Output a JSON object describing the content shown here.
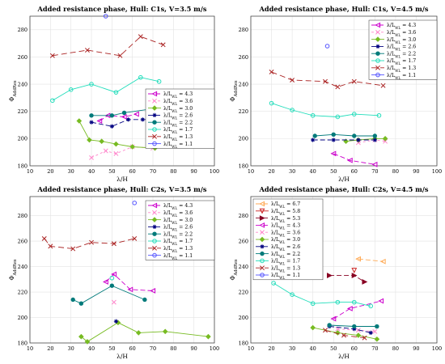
{
  "chart_data": [
    {
      "type": "line",
      "title": "Added resistance phase, Hull: C1s, V=3.5 m/s",
      "xlabel": "λ/H",
      "ylabel": "Φ_AddRes",
      "xlim": [
        10,
        100
      ],
      "ylim": [
        180,
        290
      ],
      "xticks": [
        10,
        20,
        30,
        40,
        50,
        60,
        70,
        80,
        90,
        100
      ],
      "yticks": [
        180,
        200,
        220,
        240,
        260,
        280
      ],
      "grid": true,
      "legend_position": "bottom-right",
      "series": [
        {
          "name": "λ/L_WL = 4.3",
          "color": "#cc00cc",
          "marker": "triangle-left",
          "dash": "6,3",
          "points": [
            [
              44,
              213
            ],
            [
              48,
              217
            ],
            [
              56,
              216
            ],
            [
              62,
              218
            ]
          ]
        },
        {
          "name": "λ/L_WL = 3.6",
          "color": "#ff88cc",
          "marker": "x",
          "dash": "3,3",
          "points": [
            [
              40,
              186
            ],
            [
              47,
              191
            ],
            [
              52,
              189
            ],
            [
              60,
              194
            ],
            [
              70,
              193
            ]
          ]
        },
        {
          "name": "λ/L_WL = 3.0",
          "color": "#77bb22",
          "marker": "diamond",
          "dash": "",
          "points": [
            [
              34,
              213
            ],
            [
              39,
              199
            ],
            [
              45,
              198
            ],
            [
              52,
              196
            ],
            [
              60,
              194
            ],
            [
              71,
              193
            ]
          ]
        },
        {
          "name": "λ/L_WL = 2.6",
          "color": "#000080",
          "marker": "star",
          "dash": "6,3",
          "points": [
            [
              40,
              212
            ],
            [
              50,
              209
            ],
            [
              58,
              214
            ],
            [
              65,
              214
            ],
            [
              74,
              214
            ]
          ]
        },
        {
          "name": "λ/L_WL = 2.2",
          "color": "#007a7a",
          "marker": "circle-filled",
          "dash": "",
          "points": [
            [
              40,
              217
            ],
            [
              50,
              217
            ],
            [
              56,
              219
            ],
            [
              70,
              222
            ]
          ]
        },
        {
          "name": "λ/L_WL = 1.7",
          "color": "#22ddbb",
          "marker": "circle",
          "dash": "",
          "points": [
            [
              21,
              228
            ],
            [
              30,
              236
            ],
            [
              40,
              240
            ],
            [
              52,
              234
            ],
            [
              64,
              245
            ],
            [
              73,
              242
            ]
          ]
        },
        {
          "name": "λ/L_WL = 1.3",
          "color": "#aa2222",
          "marker": "x",
          "dash": "7,4",
          "points": [
            [
              21,
              261
            ],
            [
              38,
              265
            ],
            [
              54,
              261
            ],
            [
              64,
              275
            ],
            [
              75,
              269
            ]
          ]
        },
        {
          "name": "λ/L_WL = 1.1",
          "color": "#5555ff",
          "marker": "circle",
          "dash": "",
          "points": [
            [
              47,
              290
            ]
          ]
        }
      ]
    },
    {
      "type": "line",
      "title": "Added resistance phase, Hull: C1s, V=4.5 m/s",
      "xlabel": "λ/H",
      "ylabel": "Φ_AddRes",
      "xlim": [
        10,
        100
      ],
      "ylim": [
        180,
        290
      ],
      "xticks": [
        10,
        20,
        30,
        40,
        50,
        60,
        70,
        80,
        90,
        100
      ],
      "yticks": [
        180,
        200,
        220,
        240,
        260,
        280
      ],
      "grid": true,
      "legend_position": "top-right",
      "series": [
        {
          "name": "λ/L_WL = 4.3",
          "color": "#cc00cc",
          "marker": "triangle-left",
          "dash": "6,3",
          "points": [
            [
              50,
              189
            ],
            [
              58,
              184
            ],
            [
              70,
              181
            ]
          ]
        },
        {
          "name": "λ/L_WL = 3.6",
          "color": "#ff88cc",
          "marker": "x",
          "dash": "3,3",
          "points": [
            [
              62,
              197
            ],
            [
              70,
              199
            ],
            [
              75,
              198
            ]
          ]
        },
        {
          "name": "λ/L_WL = 3.0",
          "color": "#77bb22",
          "marker": "diamond",
          "dash": "",
          "points": [
            [
              56,
              198
            ],
            [
              62,
              199
            ],
            [
              70,
              200
            ],
            [
              75,
              200
            ]
          ]
        },
        {
          "name": "λ/L_WL = 2.6",
          "color": "#000080",
          "marker": "star",
          "dash": "6,3",
          "points": [
            [
              40,
              199
            ],
            [
              50,
              199
            ],
            [
              62,
              199
            ],
            [
              70,
              199
            ]
          ]
        },
        {
          "name": "λ/L_WL = 2.2",
          "color": "#007a7a",
          "marker": "circle-filled",
          "dash": "",
          "points": [
            [
              41,
              202
            ],
            [
              50,
              203
            ],
            [
              60,
              202
            ],
            [
              70,
              202
            ]
          ]
        },
        {
          "name": "λ/L_WL = 1.7",
          "color": "#22ddbb",
          "marker": "circle",
          "dash": "",
          "points": [
            [
              20,
              226
            ],
            [
              30,
              221
            ],
            [
              40,
              217
            ],
            [
              52,
              216
            ],
            [
              60,
              218
            ],
            [
              72,
              217
            ]
          ]
        },
        {
          "name": "λ/L_WL = 1.3",
          "color": "#aa2222",
          "marker": "x",
          "dash": "7,4",
          "points": [
            [
              20,
              249
            ],
            [
              30,
              243
            ],
            [
              46,
              242
            ],
            [
              52,
              238
            ],
            [
              60,
              242
            ],
            [
              74,
              239
            ]
          ]
        },
        {
          "name": "λ/L_WL = 1.1",
          "color": "#5555ff",
          "marker": "circle",
          "dash": "",
          "points": [
            [
              47,
              268
            ]
          ]
        }
      ]
    },
    {
      "type": "line",
      "title": "Added resistance phase, Hull: C2s, V=3.5 m/s",
      "xlabel": "λ/H",
      "ylabel": "Φ_AddRes",
      "xlim": [
        10,
        100
      ],
      "ylim": [
        180,
        295
      ],
      "xticks": [
        10,
        20,
        30,
        40,
        50,
        60,
        70,
        80,
        90,
        100
      ],
      "yticks": [
        180,
        200,
        220,
        240,
        260,
        280
      ],
      "grid": true,
      "legend_position": "top-right",
      "series": [
        {
          "name": "λ/L_WL = 4.3",
          "color": "#cc00cc",
          "marker": "triangle-left",
          "dash": "6,3",
          "points": [
            [
              47,
              228
            ],
            [
              51,
              234
            ],
            [
              59,
              222
            ],
            [
              70,
              221
            ]
          ]
        },
        {
          "name": "λ/L_WL = 3.6",
          "color": "#ff88cc",
          "marker": "x",
          "dash": "3,3",
          "points": [
            [
              51,
              212
            ]
          ]
        },
        {
          "name": "λ/L_WL = 3.0",
          "color": "#77bb22",
          "marker": "diamond",
          "dash": "",
          "points": [
            [
              35,
              185
            ],
            [
              38,
              181
            ],
            [
              53,
              196
            ],
            [
              63,
              188
            ],
            [
              76,
              189
            ],
            [
              97,
              185
            ]
          ]
        },
        {
          "name": "λ/L_WL = 2.6",
          "color": "#000080",
          "marker": "star",
          "dash": "6,3",
          "points": [
            [
              52,
              197
            ]
          ]
        },
        {
          "name": "λ/L_WL = 2.2",
          "color": "#007a7a",
          "marker": "circle-filled",
          "dash": "",
          "points": [
            [
              31,
              214
            ],
            [
              35,
              211
            ],
            [
              50,
              225
            ],
            [
              66,
              214
            ]
          ]
        },
        {
          "name": "λ/L_WL = 1.7",
          "color": "#22ddbb",
          "marker": "circle",
          "dash": "",
          "points": [
            [
              50,
              231
            ]
          ]
        },
        {
          "name": "λ/L_WL = 1.3",
          "color": "#aa2222",
          "marker": "x",
          "dash": "7,4",
          "points": [
            [
              17,
              262
            ],
            [
              20,
              256
            ],
            [
              31,
              254
            ],
            [
              40,
              259
            ],
            [
              51,
              258
            ],
            [
              61,
              262
            ]
          ]
        },
        {
          "name": "λ/L_WL = 1.1",
          "color": "#5555ff",
          "marker": "circle",
          "dash": "",
          "points": [
            [
              61,
              290
            ]
          ]
        }
      ]
    },
    {
      "type": "line",
      "title": "Added resistance phase, Hull: C2s, V=4.5 m/s",
      "xlabel": "λ/H",
      "ylabel": "Φ_AddRes",
      "xlim": [
        10,
        100
      ],
      "ylim": [
        180,
        295
      ],
      "xticks": [
        10,
        20,
        30,
        40,
        50,
        60,
        70,
        80,
        90,
        100
      ],
      "yticks": [
        180,
        200,
        220,
        240,
        260,
        280
      ],
      "grid": true,
      "legend_position": "top-left",
      "series": [
        {
          "name": "λ/L_WL = 6.7",
          "color": "#ffaa55",
          "marker": "triangle-left",
          "dash": "6,3",
          "points": [
            [
              62,
              246
            ],
            [
              74,
              244
            ]
          ]
        },
        {
          "name": "λ/L_WL = 5.8",
          "color": "#cc2222",
          "marker": "triangle-down",
          "dash": "",
          "points": [
            [
              60,
              237
            ]
          ]
        },
        {
          "name": "λ/L_WL = 5.3",
          "color": "#880022",
          "marker": "triangle-right",
          "dash": "6,3",
          "points": [
            [
              48,
              233
            ],
            [
              60,
              233
            ],
            [
              65,
              228
            ]
          ]
        },
        {
          "name": "λ/L_WL = 4.3",
          "color": "#cc00cc",
          "marker": "triangle-left",
          "dash": "6,3",
          "points": [
            [
              50,
              199
            ],
            [
              58,
              207
            ],
            [
              73,
              213
            ]
          ]
        },
        {
          "name": "λ/L_WL = 3.6",
          "color": "#ff88cc",
          "marker": "x",
          "dash": "3,3",
          "points": [
            [
              52,
              191
            ],
            [
              62,
              190
            ],
            [
              70,
              189
            ]
          ]
        },
        {
          "name": "λ/L_WL = 3.0",
          "color": "#77bb22",
          "marker": "diamond",
          "dash": "",
          "points": [
            [
              40,
              192
            ],
            [
              52,
              188
            ],
            [
              62,
              186
            ],
            [
              71,
              183
            ]
          ]
        },
        {
          "name": "λ/L_WL = 2.6",
          "color": "#000080",
          "marker": "star",
          "dash": "6,3",
          "points": [
            [
              48,
              193
            ],
            [
              60,
              191
            ],
            [
              68,
              188
            ]
          ]
        },
        {
          "name": "λ/L_WL = 2.2",
          "color": "#007a7a",
          "marker": "circle-filled",
          "dash": "",
          "points": [
            [
              48,
              194
            ],
            [
              60,
              193
            ],
            [
              71,
              193
            ]
          ]
        },
        {
          "name": "λ/L_WL = 1.7",
          "color": "#22ddbb",
          "marker": "circle",
          "dash": "",
          "points": [
            [
              21,
              227
            ],
            [
              30,
              218
            ],
            [
              40,
              211
            ],
            [
              52,
              212
            ],
            [
              60,
              212
            ],
            [
              68,
              209
            ]
          ]
        },
        {
          "name": "λ/L_WL = 1.3",
          "color": "#aa2222",
          "marker": "x",
          "dash": "7,4",
          "points": [
            [
              46,
              190
            ],
            [
              55,
              186
            ],
            [
              65,
              184
            ]
          ]
        },
        {
          "name": "λ/L_WL = 1.1",
          "color": "#5555ff",
          "marker": "circle",
          "dash": "",
          "points": [
            [
              40,
              262
            ]
          ]
        }
      ]
    }
  ]
}
